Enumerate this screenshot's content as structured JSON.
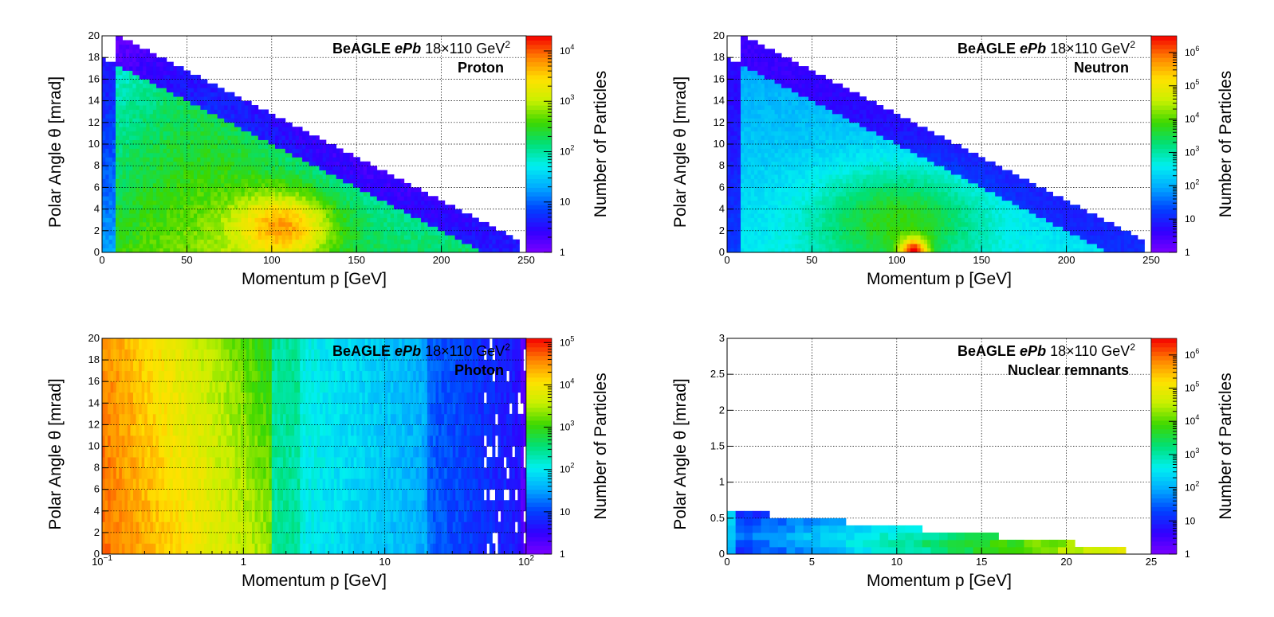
{
  "figure": {
    "colors": {
      "axis": "#000000",
      "grid": "#000000",
      "background": "#ffffff"
    }
  },
  "chart_data": [
    {
      "type": "heatmap",
      "title": "",
      "generator": "BeAGLE",
      "beam": "ePb",
      "beam_energy": "18×110 GeV",
      "energy_exp": "2",
      "particle": "Proton",
      "xlabel": "Momentum p [GeV]",
      "ylabel": "Polar Angle   θ [mrad]",
      "colorbar_label": "Number of Particles",
      "xscale": "linear",
      "xlim": [
        0,
        250
      ],
      "ylim": [
        0,
        20
      ],
      "xticks": [
        0,
        50,
        100,
        150,
        200,
        250
      ],
      "xtick_labels": [
        "0",
        "50",
        "100",
        "150",
        "200",
        "250"
      ],
      "yticks": [
        0,
        2,
        4,
        6,
        8,
        10,
        12,
        14,
        16,
        18,
        20
      ],
      "ytick_labels": [
        "0",
        "2",
        "4",
        "6",
        "8",
        "10",
        "12",
        "14",
        "16",
        "18",
        "20"
      ],
      "zlog_max": 4.3,
      "zticks": [
        {
          "exp": 0,
          "base": "1"
        },
        {
          "exp": 1,
          "base": "10"
        },
        {
          "exp": 2,
          "base": "10",
          "sup": "2"
        },
        {
          "exp": 3,
          "base": "10",
          "sup": "3"
        },
        {
          "exp": 4,
          "base": "10",
          "sup": "4"
        }
      ],
      "grid": true
    },
    {
      "type": "heatmap",
      "title": "",
      "generator": "BeAGLE",
      "beam": "ePb",
      "beam_energy": "18×110 GeV",
      "energy_exp": "2",
      "particle": "Neutron",
      "xlabel": "Momentum p [GeV]",
      "ylabel": "Polar Angle   θ [mrad]",
      "colorbar_label": "Number of Particles",
      "xscale": "linear",
      "xlim": [
        0,
        250
      ],
      "ylim": [
        0,
        20
      ],
      "xticks": [
        0,
        50,
        100,
        150,
        200,
        250
      ],
      "xtick_labels": [
        "0",
        "50",
        "100",
        "150",
        "200",
        "250"
      ],
      "yticks": [
        0,
        2,
        4,
        6,
        8,
        10,
        12,
        14,
        16,
        18,
        20
      ],
      "ytick_labels": [
        "0",
        "2",
        "4",
        "6",
        "8",
        "10",
        "12",
        "14",
        "16",
        "18",
        "20"
      ],
      "zlog_max": 6.5,
      "zticks": [
        {
          "exp": 0,
          "base": "1"
        },
        {
          "exp": 1,
          "base": "10"
        },
        {
          "exp": 2,
          "base": "10",
          "sup": "2"
        },
        {
          "exp": 3,
          "base": "10",
          "sup": "3"
        },
        {
          "exp": 4,
          "base": "10",
          "sup": "4"
        },
        {
          "exp": 5,
          "base": "10",
          "sup": "5"
        },
        {
          "exp": 6,
          "base": "10",
          "sup": "6"
        }
      ],
      "grid": true
    },
    {
      "type": "heatmap",
      "title": "",
      "generator": "BeAGLE",
      "beam": "ePb",
      "beam_energy": "18×110 GeV",
      "energy_exp": "2",
      "particle": "Photon",
      "xlabel": "Momentum p [GeV]",
      "ylabel": "Polar Angle   θ [mrad]",
      "colorbar_label": "Number of Particles",
      "xscale": "log",
      "xlim": [
        0.1,
        100
      ],
      "ylim": [
        0,
        20
      ],
      "xticks": [
        0.1,
        1,
        10,
        100
      ],
      "xtick_labels": [
        {
          "base": "10",
          "sup": "−1"
        },
        {
          "base": "1"
        },
        {
          "base": "10"
        },
        {
          "base": "10",
          "sup": "2"
        }
      ],
      "yticks": [
        0,
        2,
        4,
        6,
        8,
        10,
        12,
        14,
        16,
        18,
        20
      ],
      "ytick_labels": [
        "0",
        "2",
        "4",
        "6",
        "8",
        "10",
        "12",
        "14",
        "16",
        "18",
        "20"
      ],
      "zlog_max": 5.1,
      "zticks": [
        {
          "exp": 0,
          "base": "1"
        },
        {
          "exp": 1,
          "base": "10"
        },
        {
          "exp": 2,
          "base": "10",
          "sup": "2"
        },
        {
          "exp": 3,
          "base": "10",
          "sup": "3"
        },
        {
          "exp": 4,
          "base": "10",
          "sup": "4"
        },
        {
          "exp": 5,
          "base": "10",
          "sup": "5"
        }
      ],
      "grid": true
    },
    {
      "type": "heatmap",
      "title": "",
      "generator": "BeAGLE",
      "beam": "ePb",
      "beam_energy": "18×110 GeV",
      "energy_exp": "2",
      "particle": "Nuclear remnants",
      "xlabel": "Momentum p [GeV]",
      "ylabel": "Polar Angle   θ [mrad]",
      "colorbar_label": "Number of Particles",
      "xscale": "linear",
      "xlim": [
        0,
        25
      ],
      "ylim": [
        0,
        3
      ],
      "xticks": [
        0,
        5,
        10,
        15,
        20,
        25
      ],
      "xtick_labels": [
        "0",
        "5",
        "10",
        "15",
        "20",
        "25"
      ],
      "yticks": [
        0,
        0.5,
        1,
        1.5,
        2,
        2.5,
        3
      ],
      "ytick_labels": [
        "0",
        "0.5",
        "1",
        "1.5",
        "2",
        "2.5",
        "3"
      ],
      "zlog_max": 6.5,
      "zticks": [
        {
          "exp": 0,
          "base": "1"
        },
        {
          "exp": 1,
          "base": "10"
        },
        {
          "exp": 2,
          "base": "10",
          "sup": "2"
        },
        {
          "exp": 3,
          "base": "10",
          "sup": "3"
        },
        {
          "exp": 4,
          "base": "10",
          "sup": "4"
        },
        {
          "exp": 5,
          "base": "10",
          "sup": "5"
        },
        {
          "exp": 6,
          "base": "10",
          "sup": "6"
        }
      ],
      "grid": true
    }
  ]
}
